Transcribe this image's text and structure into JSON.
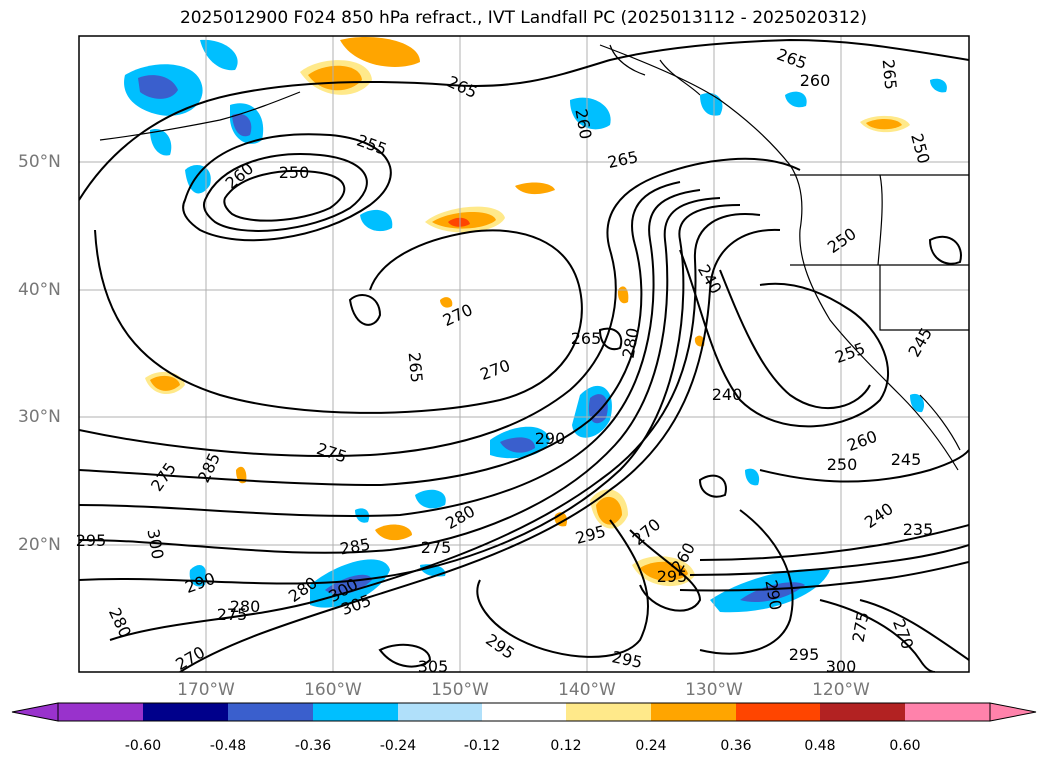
{
  "title": "2025012900 F024 850 hPa refract., IVT Landfall PC (2025013112 - 2025020312)",
  "map": {
    "lat_labels": [
      "50°N",
      "40°N",
      "30°N",
      "20°N"
    ],
    "lon_labels": [
      "170°W",
      "160°W",
      "150°W",
      "140°W",
      "130°W",
      "120°W"
    ],
    "contour_labels": [
      "265",
      "260",
      "265",
      "255",
      "250",
      "260",
      "265",
      "260",
      "250",
      "240",
      "270",
      "265",
      "265",
      "270",
      "280",
      "240",
      "255",
      "260",
      "245",
      "250",
      "275",
      "285",
      "275",
      "290",
      "300",
      "295",
      "240",
      "235",
      "280",
      "285",
      "275",
      "270",
      "260",
      "295",
      "290",
      "280",
      "275",
      "280",
      "300",
      "305",
      "270",
      "280",
      "295",
      "305",
      "295",
      "290",
      "295",
      "300",
      "275",
      "270",
      "295",
      "250",
      "245",
      "265"
    ]
  },
  "colorbar": {
    "ticks": [
      "-0.60",
      "-0.48",
      "-0.36",
      "-0.24",
      "-0.12",
      "0.12",
      "0.24",
      "0.36",
      "0.48",
      "0.60"
    ],
    "colors": [
      "#9932cc",
      "#00008b",
      "#3a5fcd",
      "#00bfff",
      "#b0e0fa",
      "#ffffff",
      "#ffe98a",
      "#ffa500",
      "#ff4500",
      "#b22222",
      "#ff82ab"
    ]
  }
}
